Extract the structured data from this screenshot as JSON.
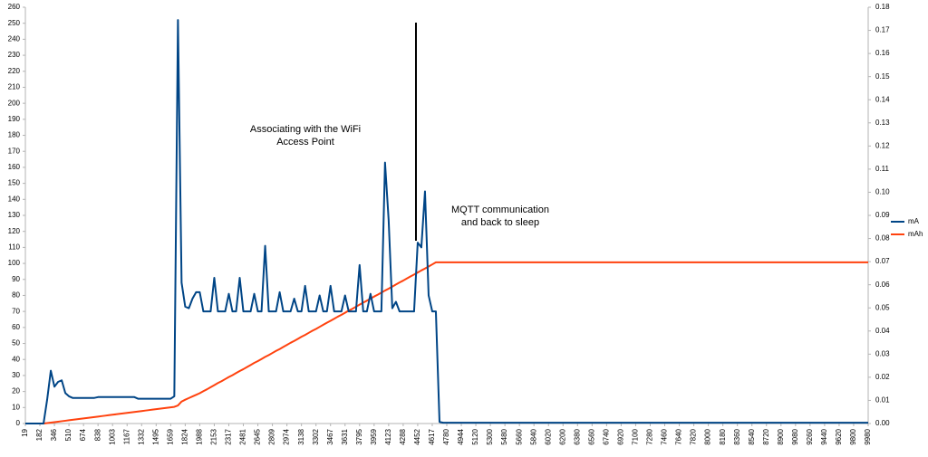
{
  "chart_data": {
    "type": "line",
    "categories": [
      "19",
      null,
      null,
      null,
      "182",
      null,
      null,
      null,
      "346",
      null,
      null,
      null,
      "510",
      null,
      null,
      null,
      "674",
      null,
      null,
      null,
      "838",
      null,
      null,
      null,
      "1003",
      null,
      null,
      null,
      "1167",
      null,
      null,
      null,
      "1332",
      null,
      null,
      null,
      "1495",
      null,
      null,
      null,
      "1659",
      null,
      null,
      null,
      "1824",
      null,
      null,
      null,
      "1988",
      null,
      null,
      null,
      "2153",
      null,
      null,
      null,
      "2317",
      null,
      null,
      null,
      "2481",
      null,
      null,
      null,
      "2645",
      null,
      null,
      null,
      "2809",
      null,
      null,
      null,
      "2974",
      null,
      null,
      null,
      "3138",
      null,
      null,
      null,
      "3302",
      null,
      null,
      null,
      "3467",
      null,
      null,
      null,
      "3631",
      null,
      null,
      null,
      "3795",
      null,
      null,
      null,
      "3959",
      null,
      null,
      null,
      "4123",
      null,
      null,
      null,
      "4288",
      null,
      null,
      null,
      "4452",
      null,
      null,
      null,
      "4617",
      null,
      null,
      null,
      "4780",
      null,
      null,
      null,
      "4944",
      null,
      null,
      null,
      "5120",
      null,
      null,
      null,
      "5300",
      null,
      null,
      null,
      "5480",
      null,
      null,
      null,
      "5660",
      null,
      null,
      null,
      "5840",
      null,
      null,
      null,
      "6020",
      null,
      null,
      null,
      "6200",
      null,
      null,
      null,
      "6380",
      null,
      null,
      null,
      "6560",
      null,
      null,
      null,
      "6740",
      null,
      null,
      null,
      "6920",
      null,
      null,
      null,
      "7100",
      null,
      null,
      null,
      "7280",
      null,
      null,
      null,
      "7460",
      null,
      null,
      null,
      "7640",
      null,
      null,
      null,
      "7820",
      null,
      null,
      null,
      "8000",
      null,
      null,
      null,
      "8180",
      null,
      null,
      null,
      "8360",
      null,
      null,
      null,
      "8540",
      null,
      null,
      null,
      "8720",
      null,
      null,
      null,
      "8900",
      null,
      null,
      null,
      "9080",
      null,
      null,
      null,
      "9260",
      null,
      null,
      null,
      "9440",
      null,
      null,
      null,
      "9620",
      null,
      null,
      null,
      "9800",
      null,
      null,
      null,
      "9980"
    ],
    "series": [
      {
        "name": "mA",
        "color": "#004586",
        "values": [
          0,
          0,
          0,
          0,
          0,
          0,
          15,
          33,
          23,
          26,
          27,
          19,
          17,
          16,
          16,
          16,
          16,
          16,
          16,
          16,
          16.5,
          16.5,
          16.5,
          16.5,
          16.5,
          16.5,
          16.5,
          16.5,
          16.5,
          16.5,
          16.5,
          15.5,
          15.5,
          15.5,
          15.5,
          15.5,
          15.5,
          15.5,
          15.5,
          15.5,
          15.5,
          17,
          252,
          88,
          73,
          72,
          78,
          82,
          82,
          70,
          70,
          70,
          91,
          70,
          70,
          70,
          81,
          70,
          70,
          91,
          70,
          70,
          70,
          81,
          70,
          70,
          111,
          70,
          70,
          70,
          82,
          70,
          70,
          70,
          78,
          70,
          70,
          86,
          70,
          70,
          70,
          80,
          70,
          70,
          86,
          70,
          70,
          70,
          80,
          70,
          70,
          70,
          99,
          70,
          70,
          81,
          70,
          70,
          70,
          163,
          127,
          72,
          76,
          70,
          70,
          70,
          70,
          70,
          113,
          110,
          145,
          80,
          70,
          70,
          1,
          0.5,
          0.5,
          0.5,
          0.5,
          0.5,
          0.5,
          0.5,
          0.5,
          0.5,
          0.5,
          0.5,
          0.5,
          0.5,
          0.5,
          0.5,
          0.5,
          0.5,
          0.5,
          0.5,
          0.5,
          0.5,
          0.5,
          0.5,
          0.5,
          0.5,
          0.5,
          0.5,
          0.5,
          0.5,
          0.5,
          0.5,
          0.5,
          0.5,
          0.5,
          0.5,
          0.5,
          0.5,
          0.5,
          0.5,
          0.5,
          0.5,
          0.5,
          0.5,
          0.5,
          0.5,
          0.5,
          0.5,
          0.5,
          0.5,
          0.5,
          0.5,
          0.5,
          0.5,
          0.5,
          0.5,
          0.5,
          0.5,
          0.5,
          0.5,
          0.5,
          0.5,
          0.5,
          0.5,
          0.5,
          0.5,
          0.5,
          0.5,
          0.5,
          0.5,
          0.5,
          0.5,
          0.5,
          0.5,
          0.5,
          0.5,
          0.5,
          0.5,
          0.5,
          0.5,
          0.5,
          0.5,
          0.5,
          0.5,
          0.5,
          0.5,
          0.5,
          0.5,
          0.5,
          0.5,
          0.5,
          0.5,
          0.5,
          0.5,
          0.5,
          0.5,
          0.5,
          0.5,
          0.5,
          0.5,
          0.5,
          0.5,
          0.5,
          0.5,
          0.5,
          0.5,
          0.5,
          0.5,
          0.5,
          0.5,
          0.5,
          0.5,
          0.5,
          0.5,
          0.5,
          0.5,
          0.5,
          0.5,
          0.5
        ]
      },
      {
        "name": "mAh",
        "color": "#ff420e",
        "axis": "y2",
        "values": [
          0,
          0,
          0,
          0,
          0,
          0,
          0.0002,
          0.0004,
          0.0006,
          0.0008,
          0.001,
          0.0012,
          0.0014,
          0.0016,
          0.0018,
          0.002,
          0.0022,
          0.0024,
          0.0026,
          0.0028,
          0.003,
          0.0032,
          0.0034,
          0.0036,
          0.0038,
          0.004,
          0.0042,
          0.0044,
          0.0046,
          0.0048,
          0.005,
          0.0052,
          0.0054,
          0.0056,
          0.0058,
          0.006,
          0.0062,
          0.0064,
          0.0066,
          0.0068,
          0.007,
          0.0072,
          0.0078,
          0.0095,
          0.0103,
          0.011,
          0.0117,
          0.0124,
          0.0131,
          0.014,
          0.0148,
          0.0157,
          0.0166,
          0.0175,
          0.0183,
          0.0192,
          0.0201,
          0.0209,
          0.0218,
          0.0227,
          0.0235,
          0.0244,
          0.0253,
          0.0262,
          0.027,
          0.0279,
          0.0288,
          0.0296,
          0.0305,
          0.0314,
          0.0322,
          0.0331,
          0.034,
          0.0349,
          0.0357,
          0.0366,
          0.0375,
          0.0383,
          0.0392,
          0.0401,
          0.0409,
          0.0418,
          0.0427,
          0.0436,
          0.0444,
          0.0453,
          0.0462,
          0.047,
          0.0479,
          0.0488,
          0.0496,
          0.0505,
          0.0514,
          0.0523,
          0.0531,
          0.054,
          0.0549,
          0.0557,
          0.0566,
          0.0575,
          0.0583,
          0.0592,
          0.0601,
          0.061,
          0.0618,
          0.0627,
          0.0636,
          0.0644,
          0.0653,
          0.0662,
          0.067,
          0.0679,
          0.0688,
          0.0697,
          0.0697,
          0.0697,
          0.0697,
          0.0697,
          0.0697,
          0.0697,
          0.0697,
          0.0697,
          0.0697,
          0.0697,
          0.0697,
          0.0697,
          0.0697,
          0.0697,
          0.0697,
          0.0697,
          0.0697,
          0.0697,
          0.0697,
          0.0697,
          0.0697,
          0.0697,
          0.0697,
          0.0697,
          0.0697,
          0.0697,
          0.0697,
          0.0697,
          0.0697,
          0.0697,
          0.0697,
          0.0697,
          0.0697,
          0.0697,
          0.0697,
          0.0697,
          0.0697,
          0.0697,
          0.0697,
          0.0697,
          0.0697,
          0.0697,
          0.0697,
          0.0697,
          0.0697,
          0.0697,
          0.0697,
          0.0697,
          0.0697,
          0.0697,
          0.0697,
          0.0697,
          0.0697,
          0.0697,
          0.0697,
          0.0697,
          0.0697,
          0.0697,
          0.0697,
          0.0697,
          0.0697,
          0.0697,
          0.0697,
          0.0697,
          0.0697,
          0.0697,
          0.0697,
          0.0697,
          0.0697,
          0.0697,
          0.0697,
          0.0697,
          0.0697,
          0.0697,
          0.0697,
          0.0697,
          0.0697,
          0.0697,
          0.0697,
          0.0697,
          0.0697,
          0.0697,
          0.0697,
          0.0697,
          0.0697,
          0.0697,
          0.0697,
          0.0697,
          0.0697,
          0.0697,
          0.0697,
          0.0697,
          0.0697,
          0.0697,
          0.0697,
          0.0697,
          0.0697,
          0.0697,
          0.0697,
          0.0697,
          0.0697,
          0.0697,
          0.0697,
          0.0697,
          0.0697,
          0.0697,
          0.0697,
          0.0697,
          0.0697,
          0.0697,
          0.0697,
          0.0697,
          0.0697,
          0.0697,
          0.0697,
          0.0697,
          0.0697,
          0.0697,
          0.0697
        ]
      }
    ],
    "ylim": [
      0,
      260
    ],
    "yticks": [
      0,
      10,
      20,
      30,
      40,
      50,
      60,
      70,
      80,
      90,
      100,
      110,
      120,
      130,
      140,
      150,
      160,
      170,
      180,
      190,
      200,
      210,
      220,
      230,
      240,
      250,
      260
    ],
    "y2lim": [
      0,
      0.18
    ],
    "y2ticks": [
      {
        "value": 0,
        "label": "0.00"
      },
      {
        "value": 0.01,
        "label": "0.01"
      },
      {
        "value": 0.02,
        "label": "0.02"
      },
      {
        "value": 0.03,
        "label": "0.03"
      },
      {
        "value": 0.04,
        "label": "0.04"
      },
      {
        "value": 0.05,
        "label": "0.05"
      },
      {
        "value": 0.06,
        "label": "0.06"
      },
      {
        "value": 0.07,
        "label": "0.07"
      },
      {
        "value": 0.08,
        "label": "0.08"
      },
      {
        "value": 0.09,
        "label": "0.09"
      },
      {
        "value": 0.1,
        "label": "0.10"
      },
      {
        "value": 0.11,
        "label": "0.11"
      },
      {
        "value": 0.12,
        "label": "0.12"
      },
      {
        "value": 0.13,
        "label": "0.13"
      },
      {
        "value": 0.14,
        "label": "0.14"
      },
      {
        "value": 0.15,
        "label": "0.15"
      },
      {
        "value": 0.16,
        "label": "0.16"
      },
      {
        "value": 0.17,
        "label": "0.17"
      },
      {
        "value": 0.18,
        "label": "0.18"
      }
    ],
    "annotations": [
      [
        "Associating with the WiFi",
        "Access Point"
      ],
      [
        "MQTT communication",
        "and back to sleep"
      ]
    ],
    "legend": "right",
    "grid": false
  }
}
